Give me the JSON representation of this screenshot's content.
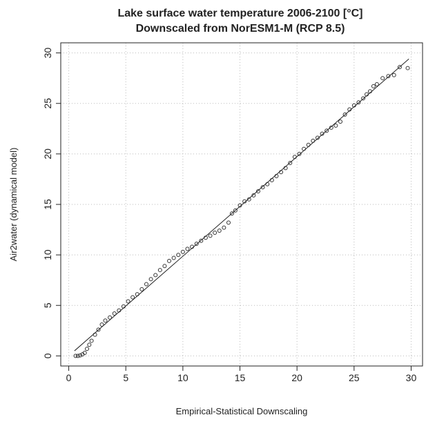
{
  "chart_data": {
    "type": "scatter",
    "title": "Lake  surface water temperature 2006-2100 [°C]",
    "subtitle": "Downscaled from NorESM1-M (RCP 8.5)",
    "x_label": "Empirical-Statistical Downscaling",
    "y_label": "Air2water (dynamical model)",
    "xlim": [
      -0.7,
      31
    ],
    "ylim": [
      -1,
      31
    ],
    "xticks": [
      0,
      5,
      10,
      15,
      20,
      25,
      30
    ],
    "yticks": [
      0,
      5,
      10,
      15,
      20,
      25,
      30
    ],
    "grid": true,
    "color": "#333333",
    "x": [
      0.6,
      0.8,
      1.0,
      1.2,
      1.4,
      1.6,
      1.8,
      2.0,
      2.3,
      2.6,
      2.9,
      3.2,
      3.6,
      4.0,
      4.4,
      4.8,
      5.2,
      5.6,
      6.0,
      6.4,
      6.8,
      7.2,
      7.6,
      8.0,
      8.4,
      8.8,
      9.2,
      9.6,
      10.0,
      10.4,
      10.8,
      11.2,
      11.6,
      12.0,
      12.4,
      12.8,
      13.2,
      13.6,
      14.0,
      14.3,
      14.6,
      15.0,
      15.4,
      15.8,
      16.2,
      16.6,
      17.0,
      17.4,
      17.8,
      18.2,
      18.6,
      19.0,
      19.4,
      19.8,
      20.2,
      20.6,
      21.0,
      21.4,
      21.8,
      22.2,
      22.6,
      23.0,
      23.4,
      23.8,
      24.2,
      24.6,
      25.0,
      25.4,
      25.8,
      26.1,
      26.4,
      26.7,
      27.0,
      27.5,
      28.0,
      28.5,
      29.0,
      29.7
    ],
    "values": [
      0.0,
      0.0,
      0.05,
      0.15,
      0.3,
      0.7,
      1.1,
      1.5,
      2.1,
      2.6,
      3.1,
      3.5,
      3.8,
      4.2,
      4.5,
      4.9,
      5.4,
      5.8,
      6.1,
      6.6,
      7.1,
      7.6,
      8.0,
      8.5,
      8.9,
      9.4,
      9.7,
      10.0,
      10.3,
      10.6,
      10.8,
      11.1,
      11.4,
      11.7,
      11.9,
      12.2,
      12.4,
      12.7,
      13.2,
      14.1,
      14.4,
      14.9,
      15.3,
      15.5,
      15.9,
      16.3,
      16.7,
      17.0,
      17.4,
      17.8,
      18.2,
      18.6,
      19.1,
      19.7,
      20.0,
      20.5,
      20.9,
      21.3,
      21.6,
      22.0,
      22.3,
      22.6,
      22.8,
      23.2,
      23.9,
      24.4,
      24.8,
      25.1,
      25.5,
      25.9,
      26.2,
      26.7,
      26.9,
      27.5,
      27.7,
      27.8,
      28.6,
      28.5
    ],
    "reference_line": {
      "x": [
        0.5,
        29.8
      ],
      "y": [
        0.5,
        29.4
      ]
    }
  }
}
